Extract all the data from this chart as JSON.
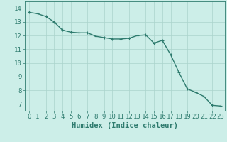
{
  "x": [
    0,
    1,
    2,
    3,
    4,
    5,
    6,
    7,
    8,
    9,
    10,
    11,
    12,
    13,
    14,
    15,
    16,
    17,
    18,
    19,
    20,
    21,
    22,
    23
  ],
  "y": [
    13.7,
    13.6,
    13.4,
    13.0,
    12.4,
    12.25,
    12.2,
    12.2,
    11.95,
    11.85,
    11.75,
    11.75,
    11.8,
    12.0,
    12.05,
    11.45,
    11.65,
    10.6,
    9.3,
    8.1,
    7.85,
    7.55,
    6.9,
    6.85
  ],
  "line_color": "#2e7b6e",
  "marker": "+",
  "bg_color": "#cceee8",
  "grid_color": "#aad4cc",
  "axis_bg_color": "#cceee8",
  "xlabel": "Humidex (Indice chaleur)",
  "xlim": [
    -0.5,
    23.5
  ],
  "ylim": [
    6.5,
    14.5
  ],
  "yticks": [
    7,
    8,
    9,
    10,
    11,
    12,
    13,
    14
  ],
  "xticks": [
    0,
    1,
    2,
    3,
    4,
    5,
    6,
    7,
    8,
    9,
    10,
    11,
    12,
    13,
    14,
    15,
    16,
    17,
    18,
    19,
    20,
    21,
    22,
    23
  ],
  "xlabel_fontsize": 7.5,
  "tick_fontsize": 6.5,
  "linewidth": 1.0,
  "markersize": 3.5,
  "markeredgewidth": 0.8
}
